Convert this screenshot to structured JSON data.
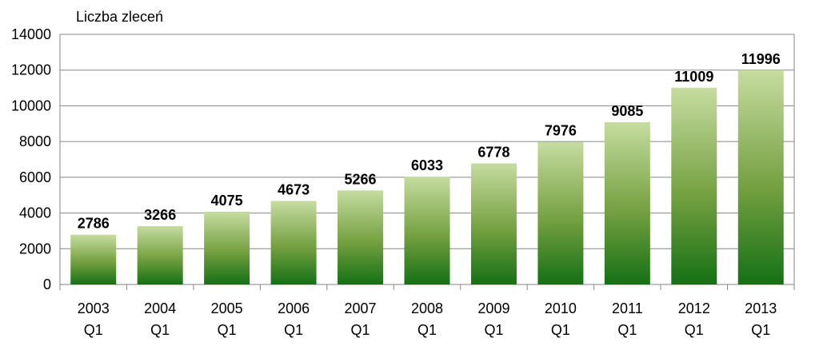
{
  "chart_data": {
    "type": "bar",
    "ylabel": "Liczba zleceń",
    "ylim": [
      0,
      14000
    ],
    "yticks": [
      0,
      2000,
      4000,
      6000,
      8000,
      10000,
      12000,
      14000
    ],
    "grid": true,
    "categories": [
      [
        "2003",
        "Q1"
      ],
      [
        "2004",
        "Q1"
      ],
      [
        "2005",
        "Q1"
      ],
      [
        "2006",
        "Q1"
      ],
      [
        "2007",
        "Q1"
      ],
      [
        "2008",
        "Q1"
      ],
      [
        "2009",
        "Q1"
      ],
      [
        "2010",
        "Q1"
      ],
      [
        "2011",
        "Q1"
      ],
      [
        "2012",
        "Q1"
      ],
      [
        "2013",
        "Q1"
      ]
    ],
    "values": [
      2786,
      3266,
      4075,
      4673,
      5266,
      6033,
      6778,
      7976,
      9085,
      11009,
      11996
    ],
    "bar_gradient": {
      "top": "#c6dca0",
      "middle": "#74a040",
      "bottom": "#157015"
    },
    "grid_color": "#868686"
  }
}
